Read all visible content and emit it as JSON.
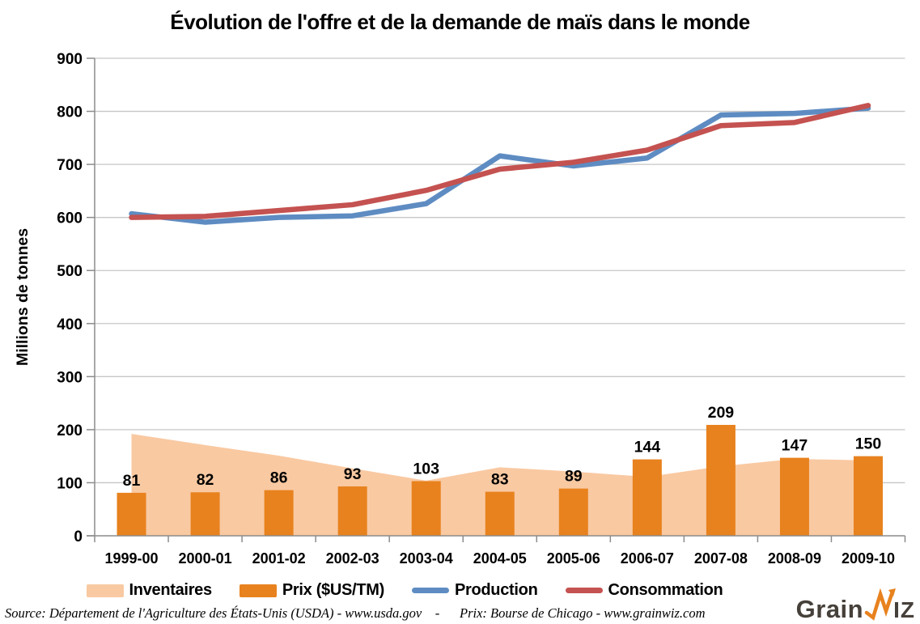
{
  "title": "Évolution de l'offre et de la demande de maïs dans le monde",
  "chart_data": {
    "type": "combo",
    "categories": [
      "1999-00",
      "2000-01",
      "2001-02",
      "2002-03",
      "2003-04",
      "2004-05",
      "2005-06",
      "2006-07",
      "2007-08",
      "2008-09",
      "2009-10"
    ],
    "series": [
      {
        "name": "Inventaires",
        "type": "area",
        "color": "#F9C9A2",
        "values": [
          192,
          171,
          151,
          127,
          104,
          129,
          121,
          111,
          131,
          145,
          142
        ]
      },
      {
        "name": "Prix ($US/TM)",
        "type": "bar",
        "color": "#E8821E",
        "values": [
          81,
          82,
          86,
          93,
          103,
          83,
          89,
          144,
          209,
          147,
          150
        ],
        "data_labels": true
      },
      {
        "name": "Production",
        "type": "line",
        "color": "#5E8CC2",
        "values": [
          607,
          591,
          600,
          603,
          626,
          716,
          697,
          712,
          793,
          796,
          806
        ]
      },
      {
        "name": "Consommation",
        "type": "line",
        "color": "#C45250",
        "values": [
          600,
          602,
          613,
          624,
          651,
          691,
          704,
          727,
          773,
          779,
          811
        ]
      }
    ],
    "ylabel": "Millions de tonnes",
    "xlabel": "",
    "ylim": [
      0,
      900
    ],
    "yticks": [
      0,
      100,
      200,
      300,
      400,
      500,
      600,
      700,
      800,
      900
    ],
    "grid": true,
    "legend_position": "bottom",
    "grid_color": "#C6C6C6",
    "axis_color": "#8C8C8C"
  },
  "footer": {
    "source_text": "Source: Département de l'Agriculture des États-Unis (USDA) - www.usda.gov    -      Prix: Bourse de Chicago - www.grainwiz.com",
    "logo": {
      "part1": "Grain",
      "part2": "IZ"
    }
  }
}
